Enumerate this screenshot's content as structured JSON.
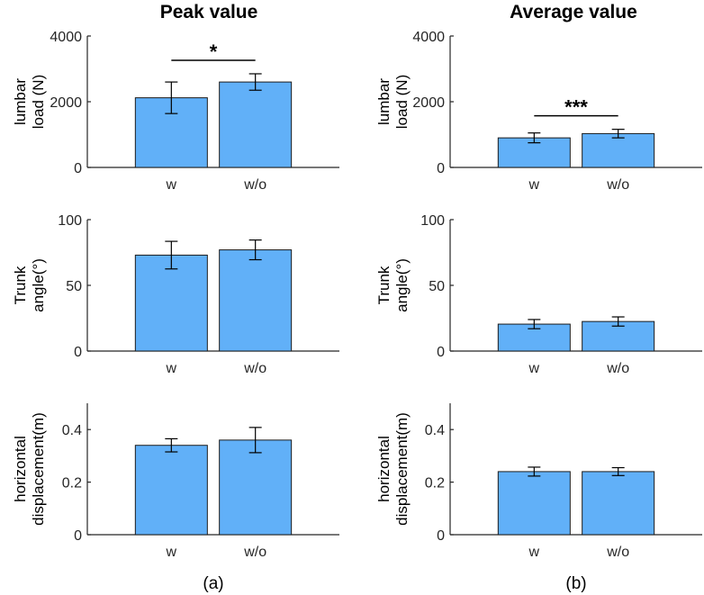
{
  "figure": {
    "column_titles": [
      "Peak value",
      "Average value"
    ],
    "panel_labels": [
      "(a)",
      "(b)"
    ]
  },
  "colors": {
    "bar_fill": "#61b0f8",
    "bar_stroke": "#1c1c1c",
    "axis": "#262626"
  },
  "chart_data": [
    {
      "type": "bar",
      "column": 0,
      "row": 0,
      "title": "Peak value",
      "categories": [
        "w",
        "w/o"
      ],
      "values": [
        2120,
        2600
      ],
      "errors": [
        480,
        250
      ],
      "ylabel": [
        "lumbar",
        "load (N)"
      ],
      "ylim": [
        0,
        4000
      ],
      "yticks": [
        0,
        2000,
        4000
      ],
      "ytick_labels": [
        "0",
        "2000",
        "4000"
      ],
      "significance": {
        "between": [
          0,
          1
        ],
        "label": "*"
      }
    },
    {
      "type": "bar",
      "column": 0,
      "row": 1,
      "categories": [
        "w",
        "w/o"
      ],
      "values": [
        73,
        77
      ],
      "errors": [
        10.5,
        7.5
      ],
      "ylabel": [
        "Trunk",
        "angle(°)"
      ],
      "ylim": [
        0,
        100
      ],
      "yticks": [
        0,
        50,
        100
      ],
      "ytick_labels": [
        "0",
        "50",
        "100"
      ]
    },
    {
      "type": "bar",
      "column": 0,
      "row": 2,
      "categories": [
        "w",
        "w/o"
      ],
      "values": [
        0.34,
        0.36
      ],
      "errors": [
        0.025,
        0.048
      ],
      "ylabel": [
        "horizontal",
        "displacement(m)"
      ],
      "ylim": [
        0,
        0.5
      ],
      "yticks": [
        0,
        0.2,
        0.4
      ],
      "ytick_labels": [
        "0",
        "0.2",
        "0.4"
      ]
    },
    {
      "type": "bar",
      "column": 1,
      "row": 0,
      "title": "Average value",
      "categories": [
        "w",
        "w/o"
      ],
      "values": [
        900,
        1030
      ],
      "errors": [
        150,
        130
      ],
      "ylabel": [
        "lumbar",
        "load (N)"
      ],
      "ylim": [
        0,
        4000
      ],
      "yticks": [
        0,
        2000,
        4000
      ],
      "ytick_labels": [
        "0",
        "2000",
        "4000"
      ],
      "significance": {
        "between": [
          0,
          1
        ],
        "label": "***"
      }
    },
    {
      "type": "bar",
      "column": 1,
      "row": 1,
      "categories": [
        "w",
        "w/o"
      ],
      "values": [
        20.5,
        22.5
      ],
      "errors": [
        3.5,
        3.5
      ],
      "ylabel": [
        "Trunk",
        "angle(°)"
      ],
      "ylim": [
        0,
        100
      ],
      "yticks": [
        0,
        50,
        100
      ],
      "ytick_labels": [
        "0",
        "50",
        "100"
      ]
    },
    {
      "type": "bar",
      "column": 1,
      "row": 2,
      "categories": [
        "w",
        "w/o"
      ],
      "values": [
        0.24,
        0.24
      ],
      "errors": [
        0.017,
        0.015
      ],
      "ylabel": [
        "horizontal",
        "displacement(m)"
      ],
      "ylim": [
        0,
        0.5
      ],
      "yticks": [
        0,
        0.2,
        0.4
      ],
      "ytick_labels": [
        "0",
        "0.2",
        "0.4"
      ]
    }
  ]
}
